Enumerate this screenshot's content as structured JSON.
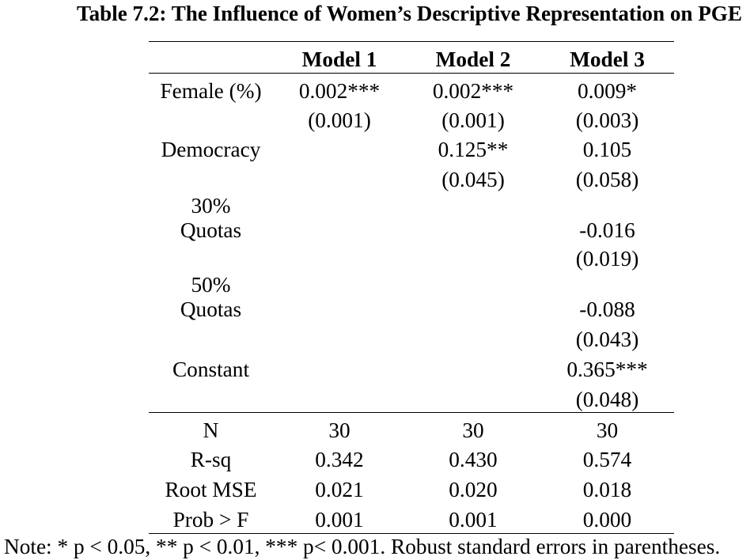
{
  "title": "Table 7.2: The Influence of Women’s Descriptive Representation on PGE",
  "columns": [
    "Model 1",
    "Model 2",
    "Model 3"
  ],
  "rows": [
    {
      "label": "Female (%)",
      "coef": [
        "0.002***",
        "0.002***",
        "0.009*"
      ],
      "se": [
        "(0.001)",
        "(0.001)",
        "(0.003)"
      ]
    },
    {
      "label": "Democracy",
      "coef": [
        "",
        "0.125**",
        "0.105"
      ],
      "se": [
        "",
        "(0.045)",
        "(0.058)"
      ]
    },
    {
      "label": "30% Quotas",
      "coef": [
        "",
        "",
        "-0.016"
      ],
      "se": [
        "",
        "",
        "(0.019)"
      ]
    },
    {
      "label": "50% Quotas",
      "coef": [
        "",
        "",
        "-0.088"
      ],
      "se": [
        "",
        "",
        "(0.043)"
      ]
    },
    {
      "label": "Constant",
      "coef": [
        "",
        "",
        "0.365***"
      ],
      "se": [
        "",
        "",
        "(0.048)"
      ]
    }
  ],
  "stats": [
    {
      "label": "N",
      "values": [
        "30",
        "30",
        "30"
      ]
    },
    {
      "label": "R-sq",
      "values": [
        "0.342",
        "0.430",
        "0.574"
      ]
    },
    {
      "label": "Root MSE",
      "values": [
        "0.021",
        "0.020",
        "0.018"
      ]
    },
    {
      "label": "Prob > F",
      "values": [
        "0.001",
        "0.001",
        "0.000"
      ]
    }
  ],
  "note": "Note: * p < 0.05, ** p < 0.01, *** p< 0.001. Robust standard errors in parentheses."
}
